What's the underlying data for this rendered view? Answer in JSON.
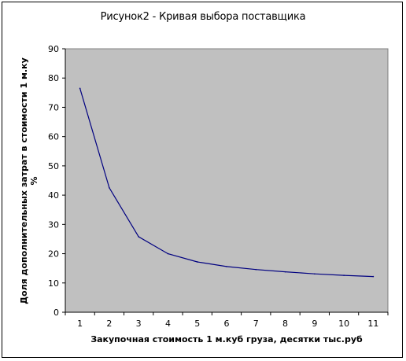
{
  "chart_data": {
    "type": "line",
    "title": "Рисунок2 - Кривая выбора поставщика",
    "xlabel": "Закупочная стоимость 1 м.куб груза, десятки тыс.руб",
    "ylabel_line1": "Доля дополнительных затрат в стоимости 1 м.ку",
    "ylabel_line2": "%",
    "categories": [
      "1",
      "2",
      "3",
      "4",
      "5",
      "6",
      "7",
      "8",
      "9",
      "10",
      "11"
    ],
    "y_ticks": [
      "0",
      "10",
      "20",
      "30",
      "40",
      "50",
      "60",
      "70",
      "80",
      "90"
    ],
    "ylim": [
      0,
      90
    ],
    "grid": false,
    "plot_background": "#c0c0c0",
    "series": [
      {
        "color": "#000080",
        "values": [
          76.5,
          42.5,
          25.8,
          20.0,
          17.2,
          15.6,
          14.6,
          13.8,
          13.1,
          12.6,
          12.2
        ]
      }
    ]
  }
}
